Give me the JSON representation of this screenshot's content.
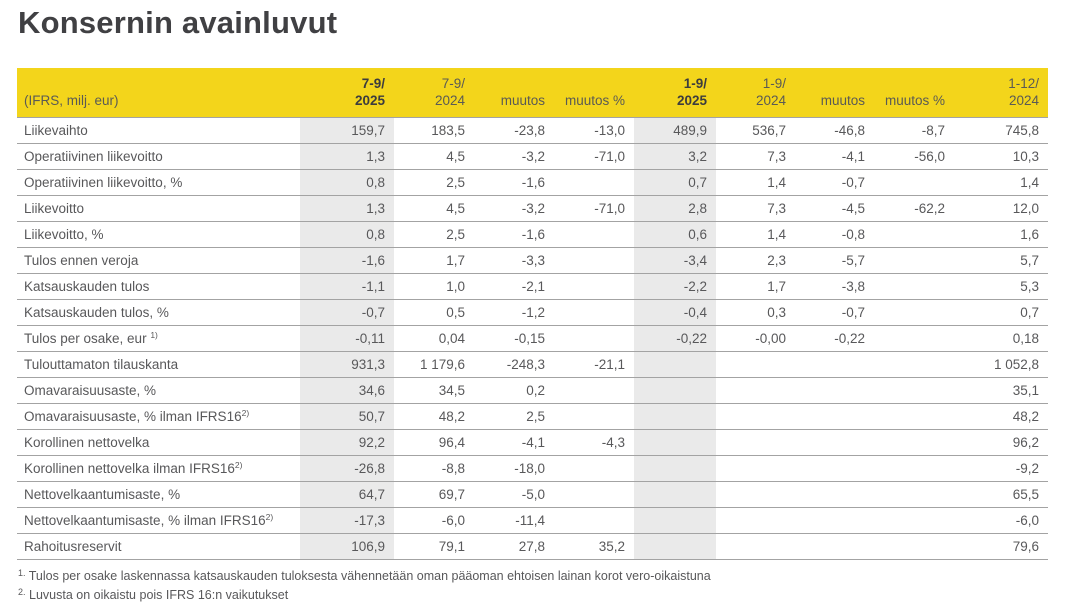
{
  "title": "Konsernin avainluvut",
  "colors": {
    "header_yellow": "#F3D51B",
    "shaded_column": "#EAEAEA",
    "divider_gray": "#A3A3A3",
    "text_gray": "#58585A"
  },
  "table": {
    "label_header": "(IFRS, milj. eur)",
    "columns": [
      {
        "line1": "7-9/",
        "line2": "2025"
      },
      {
        "line1": "7-9/",
        "line2": "2024"
      },
      {
        "line1": "",
        "line2": "muutos"
      },
      {
        "line1": "",
        "line2": "muutos %"
      },
      {
        "line1": "1-9/",
        "line2": "2025"
      },
      {
        "line1": "1-9/",
        "line2": "2024"
      },
      {
        "line1": "",
        "line2": "muutos"
      },
      {
        "line1": "",
        "line2": "muutos %"
      },
      {
        "line1": "1-12/",
        "line2": "2024"
      }
    ],
    "rows": [
      {
        "label": "Liikevaihto",
        "sup": "",
        "values": [
          "159,7",
          "183,5",
          "-23,8",
          "-13,0",
          "489,9",
          "536,7",
          "-46,8",
          "-8,7",
          "745,8"
        ]
      },
      {
        "label": "Operatiivinen liikevoitto",
        "sup": "",
        "values": [
          "1,3",
          "4,5",
          "-3,2",
          "-71,0",
          "3,2",
          "7,3",
          "-4,1",
          "-56,0",
          "10,3"
        ]
      },
      {
        "label": "Operatiivinen liikevoitto, %",
        "sup": "",
        "values": [
          "0,8",
          "2,5",
          "-1,6",
          "",
          "0,7",
          "1,4",
          "-0,7",
          "",
          "1,4"
        ]
      },
      {
        "label": "Liikevoitto",
        "sup": "",
        "values": [
          "1,3",
          "4,5",
          "-3,2",
          "-71,0",
          "2,8",
          "7,3",
          "-4,5",
          "-62,2",
          "12,0"
        ]
      },
      {
        "label": "Liikevoitto, %",
        "sup": "",
        "values": [
          "0,8",
          "2,5",
          "-1,6",
          "",
          "0,6",
          "1,4",
          "-0,8",
          "",
          "1,6"
        ]
      },
      {
        "label": "Tulos ennen veroja",
        "sup": "",
        "values": [
          "-1,6",
          "1,7",
          "-3,3",
          "",
          "-3,4",
          "2,3",
          "-5,7",
          "",
          "5,7"
        ]
      },
      {
        "label": "Katsauskauden tulos",
        "sup": "",
        "values": [
          "-1,1",
          "1,0",
          "-2,1",
          "",
          "-2,2",
          "1,7",
          "-3,8",
          "",
          "5,3"
        ]
      },
      {
        "label": "Katsauskauden tulos, %",
        "sup": "",
        "values": [
          "-0,7",
          "0,5",
          "-1,2",
          "",
          "-0,4",
          "0,3",
          "-0,7",
          "",
          "0,7"
        ]
      },
      {
        "label": "Tulos per osake, eur ",
        "sup": "1)",
        "values": [
          "-0,11",
          "0,04",
          "-0,15",
          "",
          "-0,22",
          "-0,00",
          "-0,22",
          "",
          "0,18"
        ]
      },
      {
        "label": "Tulouttamaton tilauskanta",
        "sup": "",
        "values": [
          "931,3",
          "1 179,6",
          "-248,3",
          "-21,1",
          "",
          "",
          "",
          "",
          "1 052,8"
        ]
      },
      {
        "label": "Omavaraisuusaste, %",
        "sup": "",
        "values": [
          "34,6",
          "34,5",
          "0,2",
          "",
          "",
          "",
          "",
          "",
          "35,1"
        ]
      },
      {
        "label": "Omavaraisuusaste, % ilman IFRS16",
        "sup": "2)",
        "values": [
          "50,7",
          "48,2",
          "2,5",
          "",
          "",
          "",
          "",
          "",
          "48,2"
        ]
      },
      {
        "label": "Korollinen nettovelka",
        "sup": "",
        "values": [
          "92,2",
          "96,4",
          "-4,1",
          "-4,3",
          "",
          "",
          "",
          "",
          "96,2"
        ]
      },
      {
        "label": "Korollinen nettovelka ilman IFRS16",
        "sup": "2)",
        "values": [
          "-26,8",
          "-8,8",
          "-18,0",
          "",
          "",
          "",
          "",
          "",
          "-9,2"
        ]
      },
      {
        "label": "Nettovelkaantumisaste, %",
        "sup": "",
        "values": [
          "64,7",
          "69,7",
          "-5,0",
          "",
          "",
          "",
          "",
          "",
          "65,5"
        ]
      },
      {
        "label": "Nettovelkaantumisaste, % ilman IFRS16",
        "sup": "2)",
        "values": [
          "-17,3",
          "-6,0",
          "-11,4",
          "",
          "",
          "",
          "",
          "",
          "-6,0"
        ]
      },
      {
        "label": "Rahoitusreservit",
        "sup": "",
        "values": [
          "106,9",
          "79,1",
          "27,8",
          "35,2",
          "",
          "",
          "",
          "",
          "79,6"
        ]
      }
    ]
  },
  "footnotes": [
    {
      "marker": "1.",
      "text": "Tulos per osake laskennassa katsauskauden tuloksesta vähennetään oman pääoman ehtoisen lainan korot vero-oikaistuna"
    },
    {
      "marker": "2.",
      "text": "Luvusta on oikaistu pois IFRS 16:n vaikutukset"
    }
  ]
}
